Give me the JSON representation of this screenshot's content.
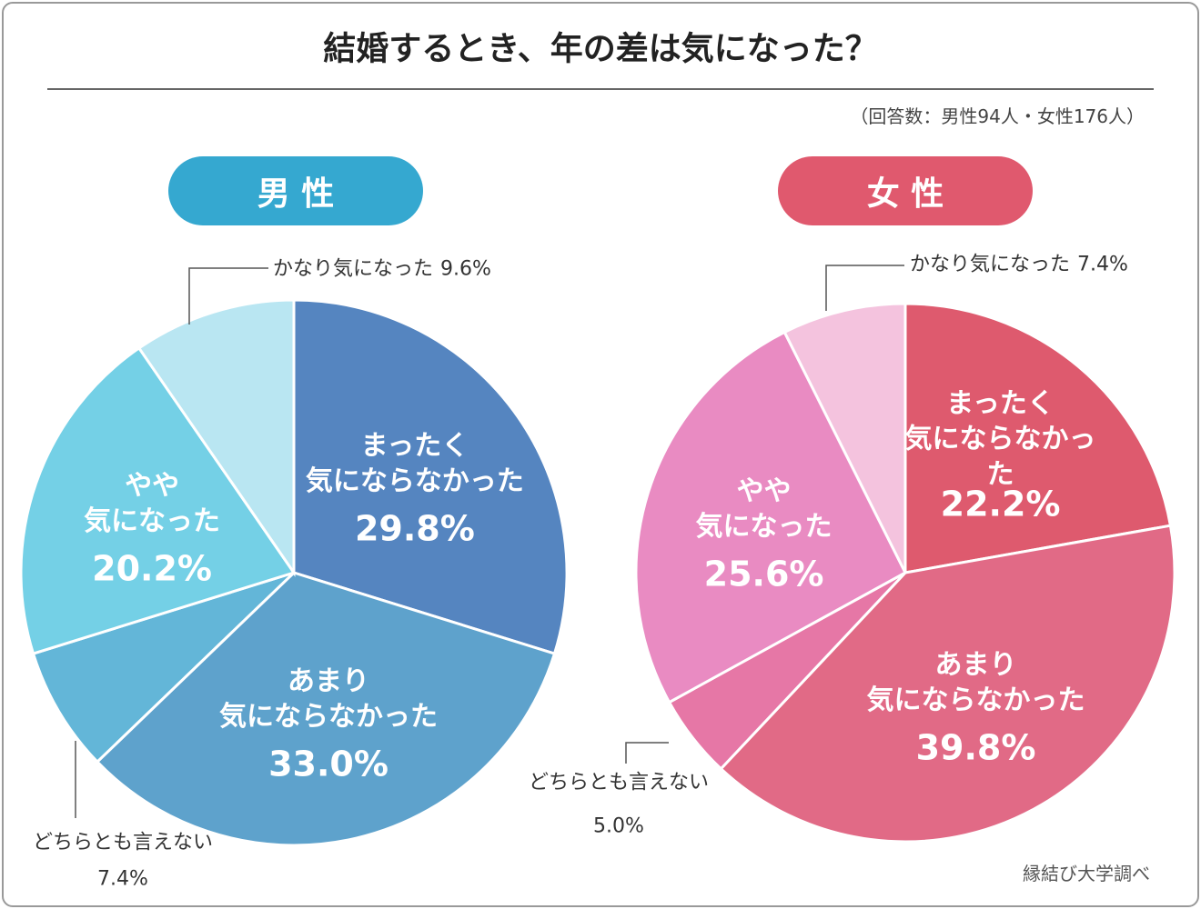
{
  "title": "結婚するとき、年の差は気になった？",
  "subtitle": "（回答数：男性94人・女性176人）",
  "source": "縁結び大学調べ",
  "chart_data": [
    {
      "type": "pie",
      "title": "男 性",
      "header_color": "#35a8d0",
      "categories": [
        "まったく\n気にならなかった",
        "あまり\n気にならなかった",
        "どちらとも言えない",
        "やや\n気になった",
        "かなり気になった"
      ],
      "values": [
        29.8,
        33.0,
        7.4,
        20.2,
        9.6
      ],
      "value_labels": [
        "29.8%",
        "33.0%",
        "7.4%",
        "20.2%",
        "9.6%"
      ],
      "colors": [
        "#5585c0",
        "#5ea2cc",
        "#63b6d8",
        "#74d0e6",
        "#b9e6f2"
      ]
    },
    {
      "type": "pie",
      "title": "女 性",
      "header_color": "#e0596e",
      "categories": [
        "まったく\n気にならなかった",
        "あまり\n気にならなかった",
        "どちらとも言えない",
        "やや\n気になった",
        "かなり気になった"
      ],
      "values": [
        22.2,
        39.8,
        5.0,
        25.6,
        7.4
      ],
      "value_labels": [
        "22.2%",
        "39.8%",
        "5.0%",
        "25.6%",
        "7.4%"
      ],
      "colors": [
        "#de5a6e",
        "#e16a86",
        "#e677a6",
        "#e98bc2",
        "#f4c3de"
      ]
    }
  ]
}
